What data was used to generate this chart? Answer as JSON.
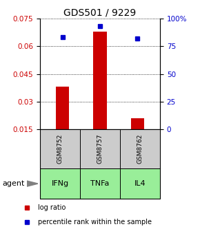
{
  "title": "GDS501 / 9229",
  "categories": [
    "IFNg",
    "TNFa",
    "IL4"
  ],
  "sample_ids": [
    "GSM8752",
    "GSM8757",
    "GSM8762"
  ],
  "log_ratio": [
    0.038,
    0.068,
    0.021
  ],
  "percentile_rank": [
    83,
    93,
    82
  ],
  "left_ylim": [
    0.015,
    0.075
  ],
  "right_ylim": [
    0,
    100
  ],
  "left_yticks": [
    0.015,
    0.03,
    0.045,
    0.06,
    0.075
  ],
  "right_yticks": [
    0,
    25,
    50,
    75,
    100
  ],
  "right_yticklabels": [
    "0",
    "25",
    "50",
    "75",
    "100%"
  ],
  "bar_color": "#cc0000",
  "square_color": "#0000cc",
  "bar_width": 0.35,
  "sample_box_color": "#cccccc",
  "agent_box_color": "#99ee99",
  "agent_label": "agent",
  "legend_bar_label": "log ratio",
  "legend_square_label": "percentile rank within the sample",
  "title_fontsize": 10,
  "tick_fontsize": 7.5,
  "label_fontsize": 8
}
